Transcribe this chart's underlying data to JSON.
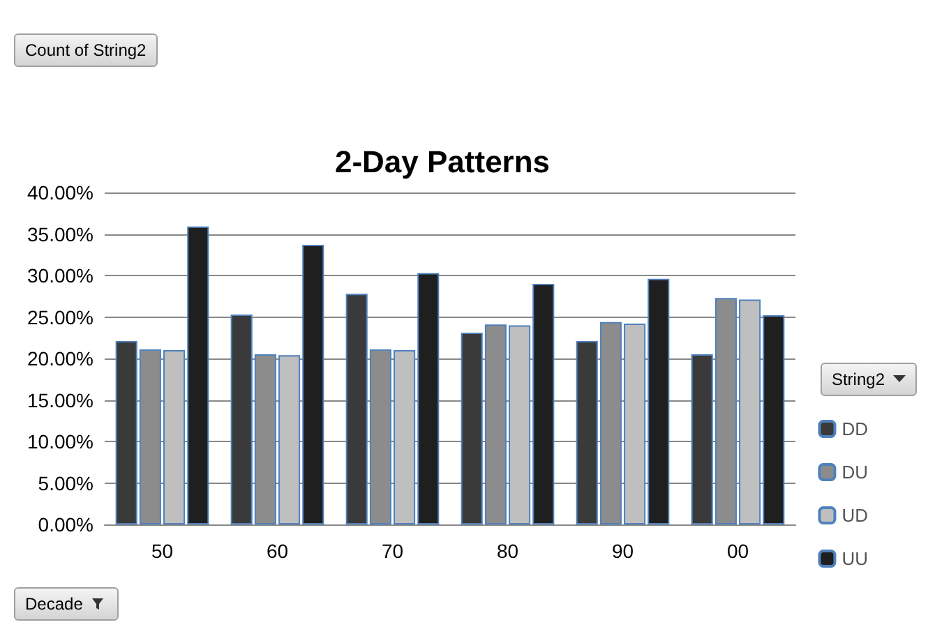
{
  "chart_data": {
    "type": "bar",
    "title": "2-Day Patterns",
    "xlabel": "Decade",
    "legend_title": "String2",
    "annotations": [
      "Count of String2"
    ],
    "categories": [
      "50",
      "60",
      "70",
      "80",
      "90",
      "00"
    ],
    "series": [
      {
        "name": "DD",
        "color": "#3a3a3a",
        "values": [
          22.1,
          25.3,
          27.8,
          23.1,
          22.1,
          20.5
        ]
      },
      {
        "name": "DU",
        "color": "#8c8c8c",
        "values": [
          21.1,
          20.5,
          21.1,
          24.1,
          24.4,
          27.3
        ]
      },
      {
        "name": "UD",
        "color": "#bfbfbf",
        "values": [
          21.0,
          20.4,
          21.0,
          24.0,
          24.2,
          27.1
        ]
      },
      {
        "name": "UU",
        "color": "#1f1f1f",
        "values": [
          35.9,
          33.7,
          30.3,
          29.0,
          29.6,
          25.2
        ]
      }
    ],
    "ylim": [
      0,
      40
    ],
    "yticks": [
      {
        "value": 0,
        "label": "0.00%"
      },
      {
        "value": 5,
        "label": "5.00%"
      },
      {
        "value": 10,
        "label": "10.00%"
      },
      {
        "value": 15,
        "label": "15.00%"
      },
      {
        "value": 20,
        "label": "20.00%"
      },
      {
        "value": 25,
        "label": "25.00%"
      },
      {
        "value": 30,
        "label": "30.00%"
      },
      {
        "value": 35,
        "label": "35.00%"
      },
      {
        "value": 40,
        "label": "40.00%"
      }
    ],
    "grid": "y",
    "legend": "right"
  }
}
